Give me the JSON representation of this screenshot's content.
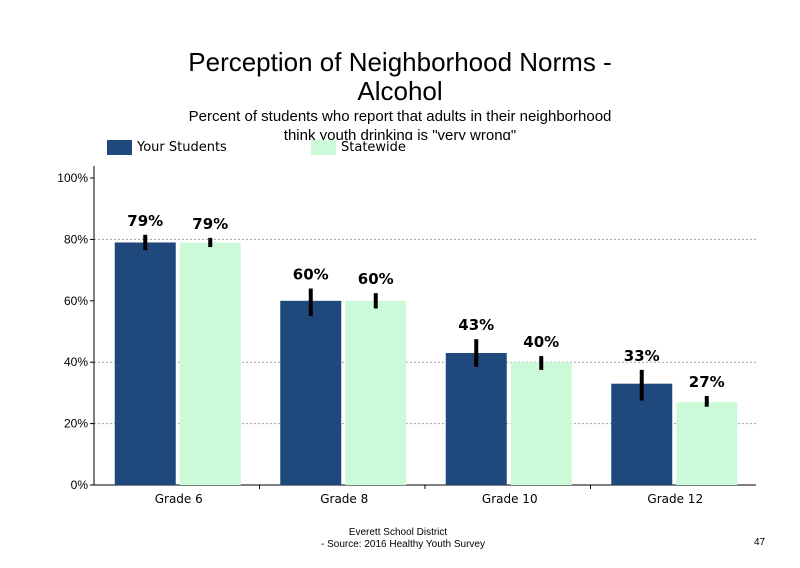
{
  "slide": {
    "title_line1": "Perception of Neighborhood Norms -",
    "title_line2": "Alcohol",
    "subtitle_line1": "Percent of students who report that adults in their neighborhood",
    "subtitle_line2": "think youth drinking is \"very wrong\"",
    "footer_line1": "Everett School District",
    "footer_line2": "- Source: 2016 Healthy  Youth Survey",
    "page_number": "47"
  },
  "colors": {
    "your_students": "#1f497d",
    "statewide": "#ccfad9",
    "grid": "#a0a0a0",
    "error_bar": "#000000"
  },
  "chart_data": {
    "type": "bar",
    "title": "Perception of Neighborhood Norms - Alcohol",
    "subtitle": "Percent of students who report that adults in their neighborhood think youth drinking is \"very wrong\"",
    "categories": [
      "Grade 6",
      "Grade 8",
      "Grade 10",
      "Grade 12"
    ],
    "series": [
      {
        "name": "Your Students",
        "values": [
          79,
          60,
          43,
          33
        ],
        "labels": [
          "79%",
          "60%",
          "43%",
          "33%"
        ],
        "error_low": [
          76.5,
          55,
          38.5,
          27.5
        ],
        "error_high": [
          81.5,
          64,
          47.5,
          37.5
        ]
      },
      {
        "name": "Statewide",
        "values": [
          79,
          60,
          40,
          27
        ],
        "labels": [
          "79%",
          "60%",
          "40%",
          "27%"
        ],
        "error_low": [
          77.5,
          57.5,
          37.5,
          25.5
        ],
        "error_high": [
          80.5,
          62.5,
          42,
          29
        ]
      }
    ],
    "ylim": [
      0,
      100
    ],
    "yticks": [
      0,
      20,
      40,
      60,
      80,
      100
    ],
    "ytick_labels": [
      "0%",
      "20%",
      "40%",
      "60%",
      "80%",
      "100%"
    ],
    "grid": "dotted horizontal at 20%, 40% and 80%",
    "legend_position": "top-left",
    "xlabel": "",
    "ylabel": ""
  }
}
